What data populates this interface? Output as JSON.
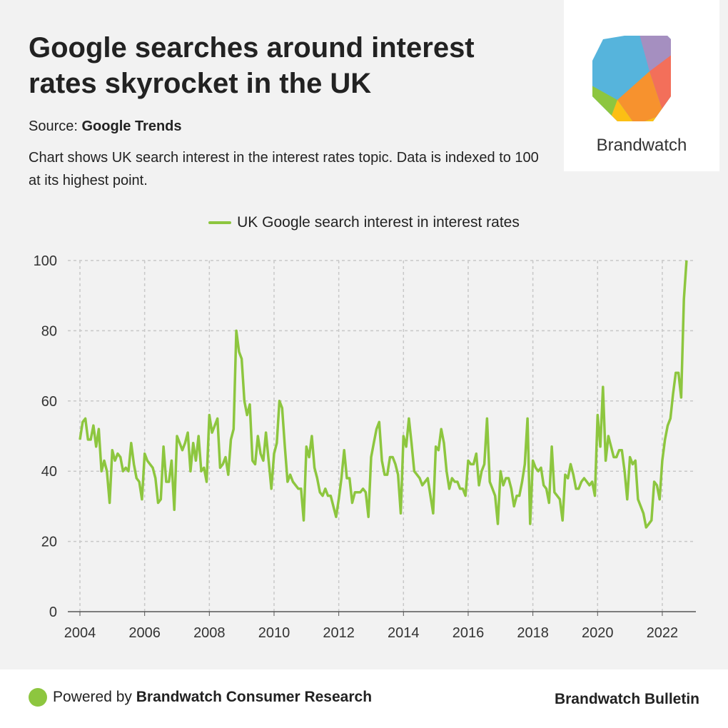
{
  "header": {
    "title": "Google searches around interest rates skyrocket in the UK",
    "source_label": "Source:",
    "source_name": "Google Trends",
    "description": "Chart shows UK search interest in the interest rates topic. Data is indexed to 100 at its highest point."
  },
  "logo": {
    "name": "Brandwatch"
  },
  "footer": {
    "powered_prefix": "Powered by",
    "powered_name": "Brandwatch Consumer Research",
    "publication": "Brandwatch Bulletin"
  },
  "colors": {
    "line": "#8dc63f",
    "grid": "#c8c8c8"
  },
  "chart_data": {
    "type": "line",
    "title": "Google searches around interest rates skyrocket in the UK",
    "xlabel": "",
    "ylabel": "",
    "ylim": [
      0,
      100
    ],
    "xlim": [
      2004,
      2023
    ],
    "yticks": [
      0,
      20,
      40,
      60,
      80,
      100
    ],
    "xticks": [
      2004,
      2006,
      2008,
      2010,
      2012,
      2014,
      2016,
      2018,
      2020,
      2022
    ],
    "grid": true,
    "legend_position": "top-center",
    "x_start": "2004-01",
    "frequency": "monthly",
    "series": [
      {
        "name": "UK Google search interest in interest rates",
        "values": [
          49,
          54,
          55,
          49,
          49,
          53,
          47,
          52,
          40,
          43,
          40,
          31,
          46,
          43,
          45,
          44,
          40,
          41,
          40,
          48,
          42,
          38,
          37,
          32,
          45,
          43,
          42,
          41,
          38,
          31,
          32,
          47,
          37,
          37,
          43,
          29,
          50,
          48,
          46,
          48,
          51,
          40,
          48,
          43,
          50,
          40,
          41,
          37,
          56,
          51,
          53,
          55,
          41,
          42,
          44,
          39,
          49,
          52,
          80,
          74,
          72,
          60,
          56,
          59,
          43,
          42,
          50,
          45,
          43,
          51,
          43,
          35,
          45,
          48,
          60,
          58,
          47,
          37,
          39,
          37,
          36,
          35,
          35,
          26,
          47,
          44,
          50,
          41,
          38,
          34,
          33,
          35,
          33,
          33,
          30,
          27,
          32,
          38,
          46,
          38,
          38,
          31,
          34,
          34,
          34,
          35,
          34,
          27,
          44,
          48,
          52,
          54,
          43,
          39,
          39,
          44,
          44,
          42,
          39,
          28,
          50,
          47,
          55,
          48,
          40,
          39,
          38,
          36,
          37,
          38,
          33,
          28,
          47,
          46,
          52,
          48,
          40,
          35,
          38,
          37,
          37,
          35,
          35,
          33,
          43,
          42,
          42,
          45,
          36,
          40,
          42,
          55,
          37,
          35,
          33,
          25,
          40,
          36,
          38,
          38,
          35,
          30,
          33,
          33,
          37,
          42,
          55,
          25,
          43,
          41,
          40,
          41,
          36,
          35,
          31,
          47,
          34,
          33,
          32,
          26,
          39,
          38,
          42,
          39,
          35,
          35,
          37,
          38,
          37,
          36,
          37,
          33,
          56,
          47,
          64,
          43,
          50,
          47,
          44,
          44,
          46,
          46,
          40,
          32,
          44,
          42,
          43,
          32,
          30,
          28,
          24,
          25,
          26,
          37,
          36,
          32,
          43,
          49,
          53,
          55,
          62,
          68,
          68,
          61,
          89,
          100
        ]
      }
    ]
  }
}
